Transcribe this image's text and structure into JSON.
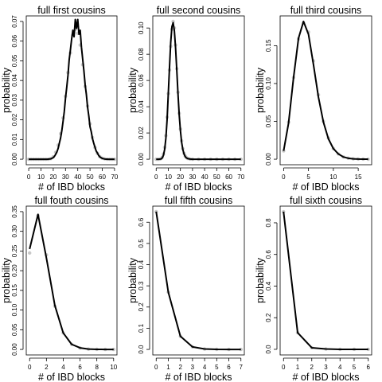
{
  "chart_data": [
    {
      "type": "line",
      "title": "full first cousins",
      "xlabel": "# of IBD blocks",
      "ylabel": "probability",
      "xlim": [
        -2,
        72
      ],
      "ylim": [
        -0.0028,
        0.0728
      ],
      "xticks": [
        0,
        10,
        20,
        30,
        40,
        50,
        60,
        70
      ],
      "yticks": [
        0.0,
        0.01,
        0.02,
        0.03,
        0.04,
        0.05,
        0.06,
        0.07
      ],
      "ytick_labels": [
        "0.00",
        "0.01",
        "0.02",
        "0.03",
        "0.04",
        "0.05",
        "0.06",
        "0.07"
      ],
      "series": [
        {
          "type": "line",
          "x": [
            0,
            5,
            10,
            15,
            18,
            20,
            21,
            22,
            23,
            24,
            25,
            26,
            27,
            28,
            29,
            30,
            31,
            32,
            33,
            34,
            35,
            36,
            37,
            38,
            39,
            40,
            41,
            42,
            43,
            44,
            45,
            46,
            47,
            48,
            49,
            50,
            51,
            52,
            53,
            54,
            55,
            56,
            57,
            58,
            59,
            60,
            62,
            65,
            70
          ],
          "y": [
            0,
            0,
            0,
            0,
            0.0002,
            0.0008,
            0.0015,
            0.0025,
            0.0037,
            0.0055,
            0.0082,
            0.0108,
            0.0145,
            0.0192,
            0.0242,
            0.031,
            0.0365,
            0.0425,
            0.0505,
            0.0555,
            0.061,
            0.0655,
            0.0622,
            0.071,
            0.0665,
            0.071,
            0.0635,
            0.0655,
            0.057,
            0.051,
            0.045,
            0.038,
            0.033,
            0.0265,
            0.022,
            0.0165,
            0.014,
            0.0105,
            0.0082,
            0.0062,
            0.0042,
            0.0032,
            0.002,
            0.0012,
            0.0008,
            0.0004,
            0.0001,
            0,
            0
          ]
        },
        {
          "type": "scatter",
          "x": [
            0,
            2,
            4,
            6,
            8,
            10,
            12,
            14,
            16,
            18,
            20,
            22,
            24,
            26,
            28,
            30,
            32,
            34,
            36,
            38,
            40,
            42,
            44,
            46,
            48,
            50,
            52,
            54,
            56,
            58,
            60,
            62,
            64,
            66,
            68,
            70
          ],
          "y": [
            0,
            0,
            0,
            0,
            0,
            0,
            0,
            0,
            0,
            0.0003,
            0.0012,
            0.0035,
            0.0072,
            0.013,
            0.021,
            0.032,
            0.044,
            0.054,
            0.063,
            0.066,
            0.064,
            0.058,
            0.048,
            0.037,
            0.027,
            0.018,
            0.011,
            0.006,
            0.003,
            0.0013,
            0.0005,
            0.0002,
            0,
            0,
            0,
            0
          ]
        }
      ]
    },
    {
      "type": "line",
      "title": "full second cousins",
      "xlabel": "# of IBD blocks",
      "ylabel": "probability",
      "xlim": [
        -2.8,
        72.8
      ],
      "ylim": [
        -0.0042,
        0.1092
      ],
      "xticks": [
        0,
        10,
        20,
        30,
        40,
        50,
        60,
        70
      ],
      "yticks": [
        0.0,
        0.02,
        0.04,
        0.06,
        0.08,
        0.1
      ],
      "ytick_labels": [
        "0.00",
        "0.02",
        "0.04",
        "0.06",
        "0.08",
        "0.10"
      ],
      "series": [
        {
          "type": "line",
          "x": [
            0,
            2,
            4,
            5,
            6,
            7,
            8,
            9,
            10,
            11,
            12,
            13,
            14,
            15,
            16,
            17,
            18,
            19,
            20,
            21,
            22,
            23,
            24,
            25,
            26,
            28,
            30,
            35,
            40,
            50,
            60,
            70
          ],
          "y": [
            0,
            0,
            0.0002,
            0.001,
            0.003,
            0.0075,
            0.016,
            0.03,
            0.05,
            0.07,
            0.089,
            0.101,
            0.104,
            0.098,
            0.085,
            0.068,
            0.05,
            0.034,
            0.022,
            0.013,
            0.0075,
            0.004,
            0.002,
            0.001,
            0.0005,
            0.0001,
            0,
            0,
            0,
            0,
            0,
            0
          ]
        },
        {
          "type": "scatter",
          "x": [
            0,
            1,
            2,
            3,
            4,
            5,
            6,
            7,
            8,
            9,
            10,
            11,
            12,
            13,
            14,
            15,
            16,
            17,
            18,
            19,
            20,
            21,
            22,
            23,
            24,
            25,
            26,
            28,
            30,
            35,
            40,
            45,
            50,
            55,
            60,
            65,
            70
          ],
          "y": [
            0,
            0,
            0,
            0.0001,
            0.0005,
            0.0015,
            0.004,
            0.009,
            0.018,
            0.032,
            0.05,
            0.068,
            0.086,
            0.099,
            0.105,
            0.1,
            0.087,
            0.069,
            0.051,
            0.035,
            0.023,
            0.014,
            0.008,
            0.0045,
            0.0024,
            0.0012,
            0.0006,
            0.0001,
            0,
            0,
            0,
            0,
            0,
            0,
            0,
            0,
            0
          ]
        }
      ]
    },
    {
      "type": "line",
      "title": "full third cousins",
      "xlabel": "# of IBD blocks",
      "ylabel": "probability",
      "xlim": [
        -0.7,
        17.7
      ],
      "ylim": [
        -0.0073,
        0.1893
      ],
      "xticks": [
        0,
        5,
        10,
        15
      ],
      "yticks": [
        0.0,
        0.05,
        0.1,
        0.15
      ],
      "ytick_labels": [
        "0.00",
        "0.05",
        "0.10",
        "0.15"
      ],
      "series": [
        {
          "type": "line",
          "x": [
            0,
            1,
            2,
            3,
            4,
            5,
            6,
            7,
            8,
            9,
            10,
            11,
            12,
            13,
            14,
            15,
            16,
            17
          ],
          "y": [
            0.011,
            0.048,
            0.108,
            0.16,
            0.182,
            0.165,
            0.125,
            0.082,
            0.049,
            0.027,
            0.014,
            0.007,
            0.003,
            0.0013,
            0.0005,
            0.0002,
            0.0001,
            0
          ]
        },
        {
          "type": "scatter",
          "x": [
            0,
            1,
            2,
            3,
            4,
            5,
            6,
            7,
            8,
            9,
            10,
            11,
            12,
            13,
            14,
            15,
            16,
            17
          ],
          "y": [
            0.011,
            0.049,
            0.108,
            0.159,
            0.18,
            0.168,
            0.13,
            0.085,
            0.05,
            0.028,
            0.014,
            0.007,
            0.003,
            0.0013,
            0.0005,
            0.0002,
            0.0001,
            0
          ]
        }
      ]
    },
    {
      "type": "line",
      "title": "full fouth cousins",
      "xlabel": "# of IBD blocks",
      "ylabel": "probability",
      "xlim": [
        -0.4,
        10.4
      ],
      "ylim": [
        -0.014,
        0.364
      ],
      "xticks": [
        0,
        2,
        4,
        6,
        8,
        10
      ],
      "yticks": [
        0.0,
        0.05,
        0.1,
        0.15,
        0.2,
        0.25,
        0.3,
        0.35
      ],
      "ytick_labels": [
        "0.00",
        "0.05",
        "0.10",
        "0.15",
        "0.20",
        "0.25",
        "0.30",
        "0.35"
      ],
      "series": [
        {
          "type": "line",
          "x": [
            0,
            1,
            2,
            3,
            4,
            5,
            6,
            7,
            8,
            9,
            10
          ],
          "y": [
            0.255,
            0.343,
            0.232,
            0.112,
            0.042,
            0.013,
            0.004,
            0.001,
            0.0002,
            0,
            0
          ]
        },
        {
          "type": "scatter",
          "x": [
            0,
            1,
            2,
            3,
            4,
            5,
            6,
            7,
            8,
            9,
            10
          ],
          "y": [
            0.245,
            0.34,
            0.24,
            0.11,
            0.042,
            0.013,
            0.0035,
            0.0008,
            0.0002,
            0,
            0
          ]
        }
      ]
    },
    {
      "type": "line",
      "title": "full fifth cousins",
      "xlabel": "# of IBD blocks",
      "ylabel": "probability",
      "xlim": [
        -0.28,
        7.28
      ],
      "ylim": [
        -0.026,
        0.676
      ],
      "xticks": [
        0,
        1,
        2,
        3,
        4,
        5,
        6,
        7
      ],
      "yticks": [
        0.0,
        0.1,
        0.2,
        0.3,
        0.4,
        0.5,
        0.6
      ],
      "ytick_labels": [
        "0.0",
        "0.1",
        "0.2",
        "0.3",
        "0.4",
        "0.5",
        "0.6"
      ],
      "series": [
        {
          "type": "line",
          "x": [
            0,
            1,
            2,
            3,
            4,
            5,
            6,
            7
          ],
          "y": [
            0.65,
            0.27,
            0.062,
            0.012,
            0.002,
            0.0003,
            0,
            0
          ]
        },
        {
          "type": "scatter",
          "x": [
            0,
            1,
            2,
            3,
            4,
            5,
            6,
            7
          ],
          "y": [
            0.65,
            0.27,
            0.062,
            0.012,
            0.002,
            0.0003,
            0,
            0
          ]
        }
      ]
    },
    {
      "type": "line",
      "title": "full sixth cousins",
      "xlabel": "# of IBD blocks",
      "ylabel": "probability",
      "xlim": [
        -0.24,
        6.24
      ],
      "ylim": [
        -0.0355,
        0.9055
      ],
      "xticks": [
        0,
        1,
        2,
        3,
        4,
        5,
        6
      ],
      "yticks": [
        0.0,
        0.2,
        0.4,
        0.6,
        0.8
      ],
      "ytick_labels": [
        "0.0",
        "0.2",
        "0.4",
        "0.6",
        "0.8"
      ],
      "series": [
        {
          "type": "line",
          "x": [
            0,
            1,
            2,
            3,
            4,
            5,
            6
          ],
          "y": [
            0.87,
            0.105,
            0.01,
            0.002,
            0,
            0,
            0
          ]
        },
        {
          "type": "scatter",
          "x": [
            0,
            1,
            2,
            3,
            4,
            5,
            6
          ],
          "y": [
            0.87,
            0.105,
            0.01,
            0.002,
            0,
            0,
            0
          ]
        }
      ]
    }
  ]
}
